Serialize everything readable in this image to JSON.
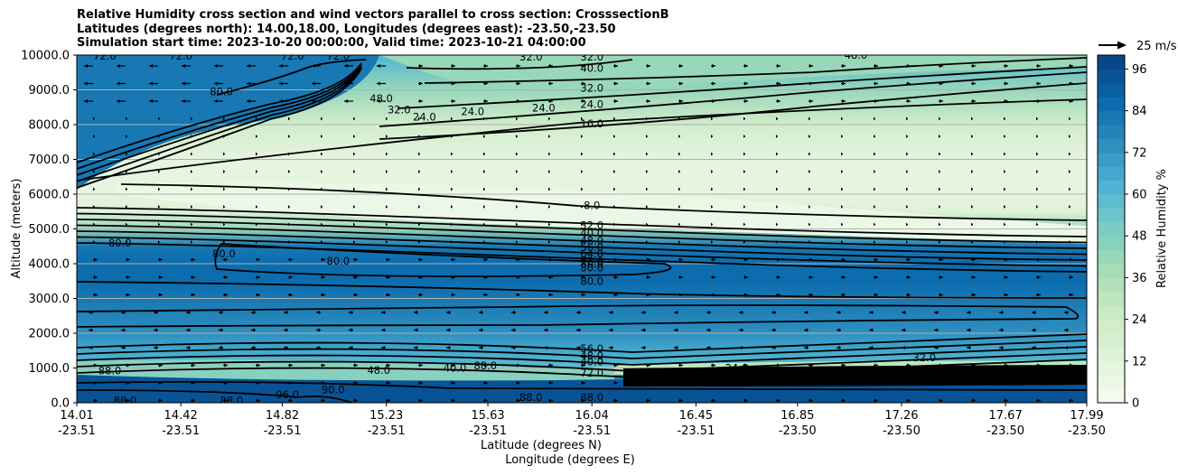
{
  "title_lines": [
    "Relative Humidity cross section and wind vectors parallel to cross section: CrosssectionB",
    "Latitudes (degrees north): 14.00,18.00, Longitudes (degrees east): -23.50,-23.50",
    "Simulation start time: 2023-10-20 00:00:00, Valid time: 2023-10-21 04:00:00"
  ],
  "chart_data": {
    "type": "heatmap",
    "subtype": "filled contour cross section with line contours and wind vectors",
    "ylabel": "Altitude (meters)",
    "xlabel_lines": [
      "Latitude (degrees N)",
      "Longitude (degrees E)"
    ],
    "ylim": [
      0,
      10000
    ],
    "y_ticks": [
      "0.0",
      "1000.0",
      "2000.0",
      "3000.0",
      "4000.0",
      "5000.0",
      "6000.0",
      "7000.0",
      "8000.0",
      "9000.0",
      "10000.0"
    ],
    "x_ticks": [
      {
        "lat": "14.01",
        "lon": "-23.51"
      },
      {
        "lat": "14.42",
        "lon": "-23.51"
      },
      {
        "lat": "14.82",
        "lon": "-23.51"
      },
      {
        "lat": "15.23",
        "lon": "-23.51"
      },
      {
        "lat": "15.63",
        "lon": "-23.51"
      },
      {
        "lat": "16.04",
        "lon": "-23.51"
      },
      {
        "lat": "16.45",
        "lon": "-23.51"
      },
      {
        "lat": "16.85",
        "lon": "-23.50"
      },
      {
        "lat": "17.26",
        "lon": "-23.50"
      },
      {
        "lat": "17.67",
        "lon": "-23.50"
      },
      {
        "lat": "17.99",
        "lon": "-23.50"
      }
    ],
    "grid": "horizontal",
    "colorbar": {
      "label": "Relative Humidity %",
      "min": 0,
      "max": 100,
      "step": 4,
      "ticks": [
        "0",
        "12",
        "24",
        "36",
        "48",
        "60",
        "72",
        "84",
        "96"
      ],
      "colormap": "GnBu"
    },
    "quiver_key": {
      "label": "25 m/s",
      "placement": "top-right"
    },
    "rh_profile": [
      {
        "alt": 0,
        "rh": 96
      },
      {
        "alt": 500,
        "rh": 88
      },
      {
        "alt": 1000,
        "rh": 56
      },
      {
        "alt": 1500,
        "rh": 64
      },
      {
        "alt": 2000,
        "rh": 72
      },
      {
        "alt": 2500,
        "rh": 78
      },
      {
        "alt": 3000,
        "rh": 82
      },
      {
        "alt": 3500,
        "rh": 84
      },
      {
        "alt": 4000,
        "rh": 86
      },
      {
        "alt": 4500,
        "rh": 80
      },
      {
        "alt": 5000,
        "rh": 40
      },
      {
        "alt": 5500,
        "rh": 12
      },
      {
        "alt": 6000,
        "rh": 8
      },
      {
        "alt": 7000,
        "rh": 10
      },
      {
        "alt": 8000,
        "rh": 20
      },
      {
        "alt": 9000,
        "rh": 40
      },
      {
        "alt": 10000,
        "rh": 60
      }
    ],
    "contour_labels": [
      {
        "text": "72.0",
        "lat": 14.12,
        "alt": 9970
      },
      {
        "text": "72.0",
        "lat": 14.42,
        "alt": 9970
      },
      {
        "text": "72.0",
        "lat": 14.86,
        "alt": 9970
      },
      {
        "text": "72.0",
        "lat": 15.04,
        "alt": 9970
      },
      {
        "text": "32.0",
        "lat": 15.8,
        "alt": 9950
      },
      {
        "text": "32.0",
        "lat": 16.04,
        "alt": 9950
      },
      {
        "text": "48.0",
        "lat": 17.08,
        "alt": 10000
      },
      {
        "text": "40.0",
        "lat": 16.04,
        "alt": 9620
      },
      {
        "text": "32.0",
        "lat": 16.04,
        "alt": 9050
      },
      {
        "text": "24.0",
        "lat": 16.04,
        "alt": 8590
      },
      {
        "text": "16.0",
        "lat": 16.04,
        "alt": 8020
      },
      {
        "text": "80.0",
        "lat": 14.58,
        "alt": 8950
      },
      {
        "text": "48.0",
        "lat": 15.21,
        "alt": 8750
      },
      {
        "text": "32.0",
        "lat": 15.28,
        "alt": 8430
      },
      {
        "text": "24.0",
        "lat": 15.38,
        "alt": 8220
      },
      {
        "text": "24.0",
        "lat": 15.57,
        "alt": 8380
      },
      {
        "text": "24.0",
        "lat": 15.85,
        "alt": 8480
      },
      {
        "text": "8.0",
        "lat": 16.04,
        "alt": 5670
      },
      {
        "text": "32.0",
        "lat": 16.04,
        "alt": 5100
      },
      {
        "text": "40.0",
        "lat": 16.04,
        "alt": 4880
      },
      {
        "text": "48.0",
        "lat": 16.04,
        "alt": 4660
      },
      {
        "text": "56.0",
        "lat": 16.04,
        "alt": 4470
      },
      {
        "text": "64.0",
        "lat": 16.04,
        "alt": 4280
      },
      {
        "text": "72.0",
        "lat": 16.04,
        "alt": 4080
      },
      {
        "text": "80.0",
        "lat": 16.04,
        "alt": 4000
      },
      {
        "text": "80.0",
        "lat": 16.04,
        "alt": 3880
      },
      {
        "text": "80.0",
        "lat": 16.04,
        "alt": 3500
      },
      {
        "text": "80.0",
        "lat": 15.04,
        "alt": 4080
      },
      {
        "text": "80.0",
        "lat": 14.59,
        "alt": 4280
      },
      {
        "text": "80.0",
        "lat": 14.18,
        "alt": 4600
      },
      {
        "text": "56.0",
        "lat": 16.04,
        "alt": 1560
      },
      {
        "text": "48.0",
        "lat": 16.04,
        "alt": 1350
      },
      {
        "text": "40.0",
        "lat": 16.04,
        "alt": 1180
      },
      {
        "text": "40.0",
        "lat": 15.5,
        "alt": 1000
      },
      {
        "text": "72.0",
        "lat": 16.04,
        "alt": 860
      },
      {
        "text": "88.0",
        "lat": 16.04,
        "alt": 150
      },
      {
        "text": "24.0",
        "lat": 16.61,
        "alt": 1000
      },
      {
        "text": "32.0",
        "lat": 17.35,
        "alt": 1300
      },
      {
        "text": "88.0",
        "lat": 14.14,
        "alt": 920
      },
      {
        "text": "88.0",
        "lat": 14.62,
        "alt": 70
      },
      {
        "text": "96.0",
        "lat": 14.84,
        "alt": 240
      },
      {
        "text": "88.0",
        "lat": 14.2,
        "alt": 70
      },
      {
        "text": "90.0",
        "lat": 15.02,
        "alt": 380
      },
      {
        "text": "48.0",
        "lat": 15.2,
        "alt": 930
      },
      {
        "text": "88.0",
        "lat": 15.62,
        "alt": 1060
      },
      {
        "text": "88.0",
        "lat": 15.8,
        "alt": 150
      }
    ]
  }
}
